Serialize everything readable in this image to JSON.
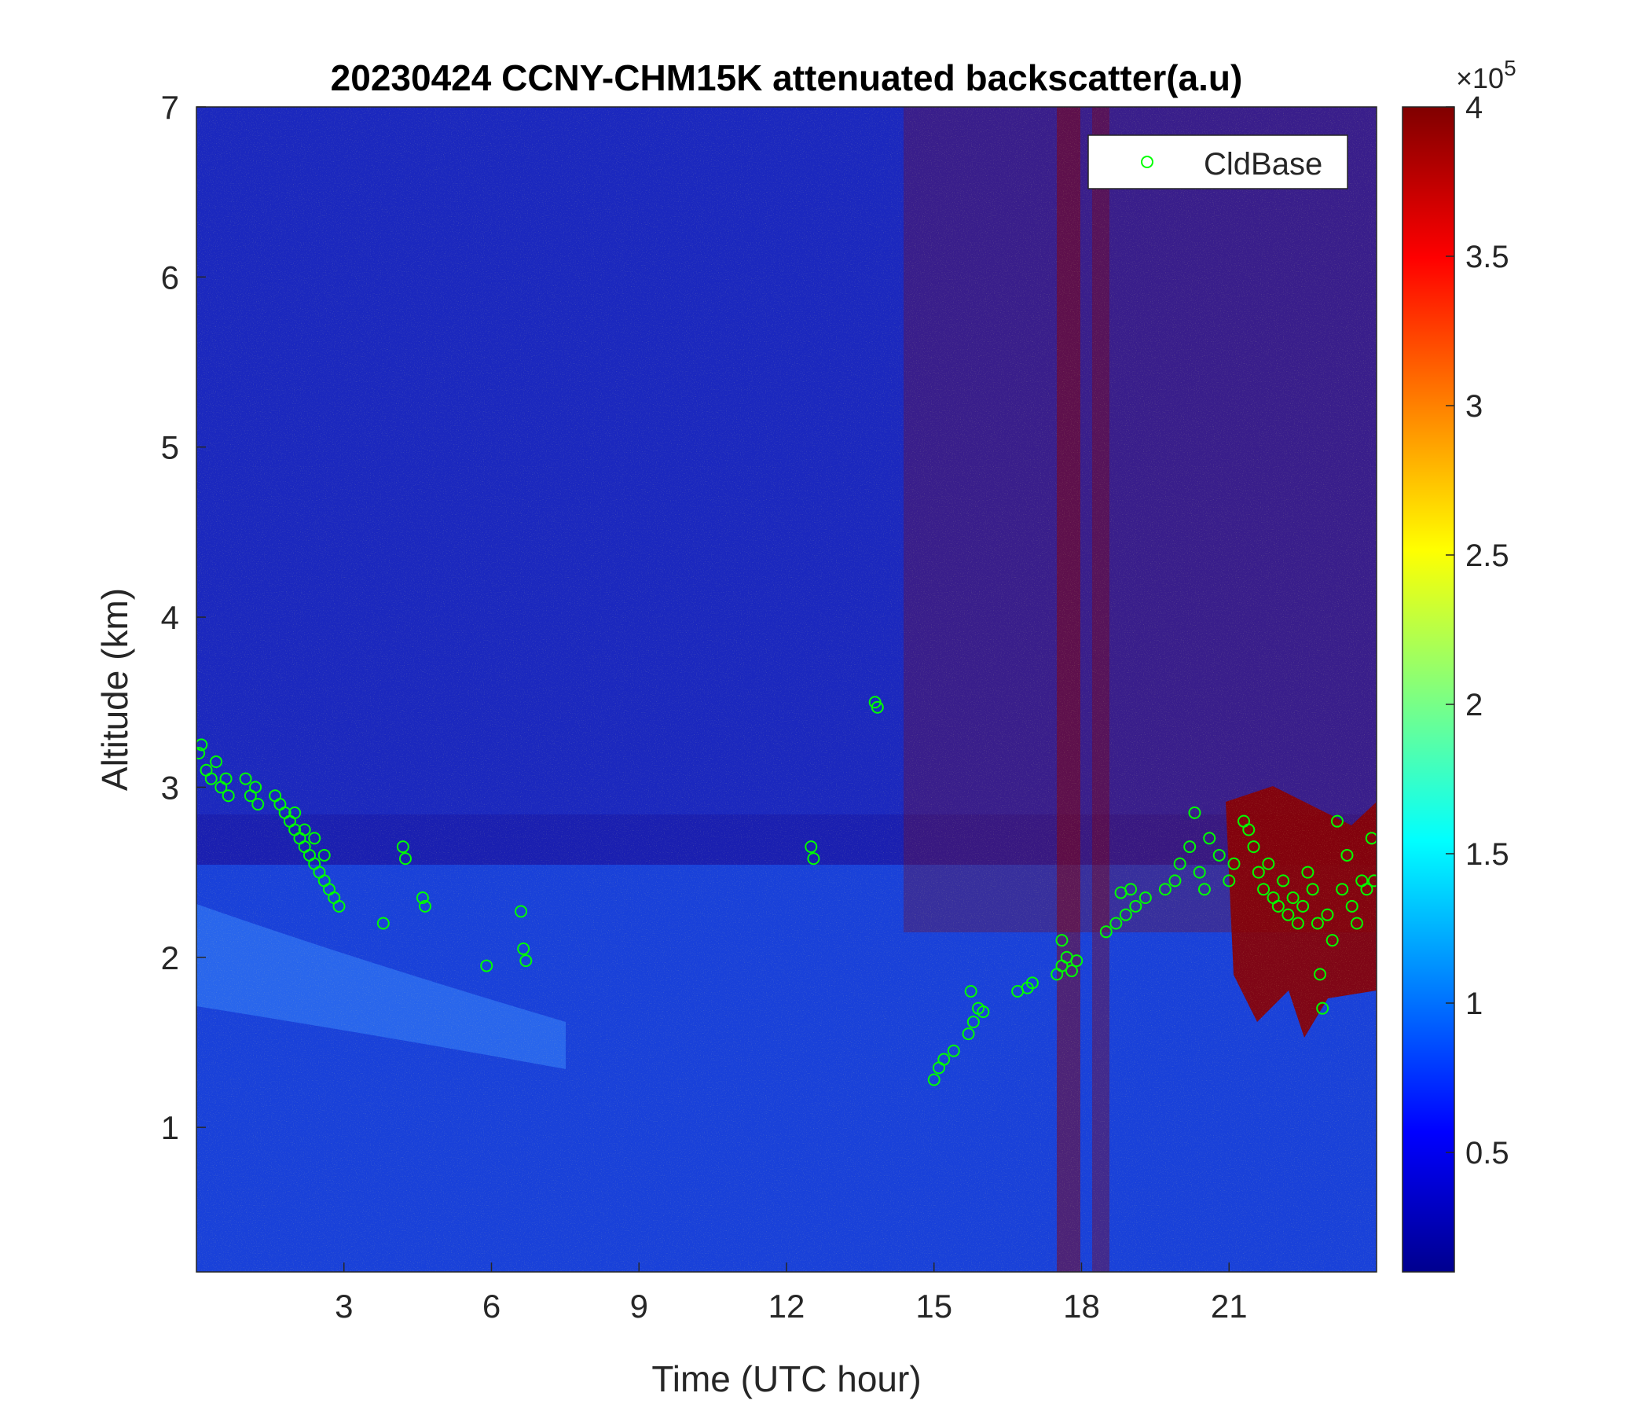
{
  "chart_data": {
    "type": "heatmap",
    "title": "20230424 CCNY-CHM15K attenuated backscatter(a.u)",
    "xlabel": "Time (UTC hour)",
    "ylabel": "Altitude (km)",
    "xlim": [
      0,
      24
    ],
    "ylim": [
      0.15,
      7
    ],
    "xticks": [
      3,
      6,
      9,
      12,
      15,
      18,
      21
    ],
    "yticks": [
      1,
      2,
      3,
      4,
      5,
      6,
      7
    ],
    "colorbar": {
      "range": [
        0.1,
        4
      ],
      "ticks": [
        0.5,
        1,
        1.5,
        2,
        2.5,
        3,
        3.5,
        4
      ],
      "exponent_label": "×10",
      "exponent": "5",
      "colormap": "jet",
      "colors": [
        "#00008f",
        "#0000ff",
        "#00ffff",
        "#ffff00",
        "#ff0000",
        "#800000"
      ]
    },
    "legend": {
      "entries": [
        "CldBase"
      ],
      "placement": "top-right",
      "marker_color": "#00ff00"
    },
    "series": [
      {
        "name": "CldBase",
        "marker": "circle",
        "color": "#00ff00",
        "points": [
          [
            0.05,
            3.2
          ],
          [
            0.1,
            3.25
          ],
          [
            0.2,
            3.1
          ],
          [
            0.3,
            3.05
          ],
          [
            0.4,
            3.15
          ],
          [
            0.5,
            3.0
          ],
          [
            0.6,
            3.05
          ],
          [
            0.65,
            2.95
          ],
          [
            1.0,
            3.05
          ],
          [
            1.1,
            2.95
          ],
          [
            1.2,
            3.0
          ],
          [
            1.25,
            2.9
          ],
          [
            1.6,
            2.95
          ],
          [
            1.7,
            2.9
          ],
          [
            1.8,
            2.85
          ],
          [
            1.9,
            2.8
          ],
          [
            2.0,
            2.75
          ],
          [
            2.1,
            2.7
          ],
          [
            2.2,
            2.65
          ],
          [
            2.3,
            2.6
          ],
          [
            2.4,
            2.55
          ],
          [
            2.5,
            2.5
          ],
          [
            2.6,
            2.45
          ],
          [
            2.7,
            2.4
          ],
          [
            2.8,
            2.35
          ],
          [
            2.9,
            2.3
          ],
          [
            2.0,
            2.85
          ],
          [
            2.2,
            2.75
          ],
          [
            2.4,
            2.7
          ],
          [
            2.6,
            2.6
          ],
          [
            3.8,
            2.2
          ],
          [
            4.2,
            2.65
          ],
          [
            4.25,
            2.58
          ],
          [
            4.6,
            2.35
          ],
          [
            4.65,
            2.3
          ],
          [
            5.9,
            1.95
          ],
          [
            6.6,
            2.27
          ],
          [
            6.65,
            2.05
          ],
          [
            6.7,
            1.98
          ],
          [
            12.5,
            2.65
          ],
          [
            12.55,
            2.58
          ],
          [
            13.8,
            3.5
          ],
          [
            13.85,
            3.47
          ],
          [
            15.0,
            1.28
          ],
          [
            15.1,
            1.35
          ],
          [
            15.2,
            1.4
          ],
          [
            15.4,
            1.45
          ],
          [
            15.7,
            1.55
          ],
          [
            15.8,
            1.62
          ],
          [
            15.9,
            1.7
          ],
          [
            16.0,
            1.68
          ],
          [
            15.75,
            1.8
          ],
          [
            16.7,
            1.8
          ],
          [
            16.9,
            1.82
          ],
          [
            17.0,
            1.85
          ],
          [
            17.5,
            1.9
          ],
          [
            17.6,
            1.95
          ],
          [
            17.7,
            2.0
          ],
          [
            17.8,
            1.92
          ],
          [
            17.9,
            1.98
          ],
          [
            17.6,
            2.1
          ],
          [
            18.5,
            2.15
          ],
          [
            18.7,
            2.2
          ],
          [
            18.9,
            2.25
          ],
          [
            19.1,
            2.3
          ],
          [
            19.3,
            2.35
          ],
          [
            19.0,
            2.4
          ],
          [
            18.8,
            2.38
          ],
          [
            19.7,
            2.4
          ],
          [
            19.9,
            2.45
          ],
          [
            20.0,
            2.55
          ],
          [
            20.2,
            2.65
          ],
          [
            20.3,
            2.85
          ],
          [
            20.4,
            2.5
          ],
          [
            20.5,
            2.4
          ],
          [
            20.6,
            2.7
          ],
          [
            20.8,
            2.6
          ],
          [
            21.0,
            2.45
          ],
          [
            21.1,
            2.55
          ],
          [
            21.3,
            2.8
          ],
          [
            21.4,
            2.75
          ],
          [
            21.5,
            2.65
          ],
          [
            21.6,
            2.5
          ],
          [
            21.7,
            2.4
          ],
          [
            21.8,
            2.55
          ],
          [
            21.9,
            2.35
          ],
          [
            22.0,
            2.3
          ],
          [
            22.1,
            2.45
          ],
          [
            22.2,
            2.25
          ],
          [
            22.3,
            2.35
          ],
          [
            22.4,
            2.2
          ],
          [
            22.5,
            2.3
          ],
          [
            22.6,
            2.5
          ],
          [
            22.7,
            2.4
          ],
          [
            22.8,
            2.2
          ],
          [
            22.85,
            1.9
          ],
          [
            22.9,
            1.7
          ],
          [
            23.0,
            2.25
          ],
          [
            23.1,
            2.1
          ],
          [
            23.2,
            2.8
          ],
          [
            23.3,
            2.4
          ],
          [
            23.4,
            2.6
          ],
          [
            23.5,
            2.3
          ],
          [
            23.6,
            2.2
          ],
          [
            23.7,
            2.45
          ],
          [
            23.8,
            2.4
          ],
          [
            23.9,
            2.7
          ],
          [
            23.95,
            2.45
          ]
        ]
      }
    ]
  }
}
